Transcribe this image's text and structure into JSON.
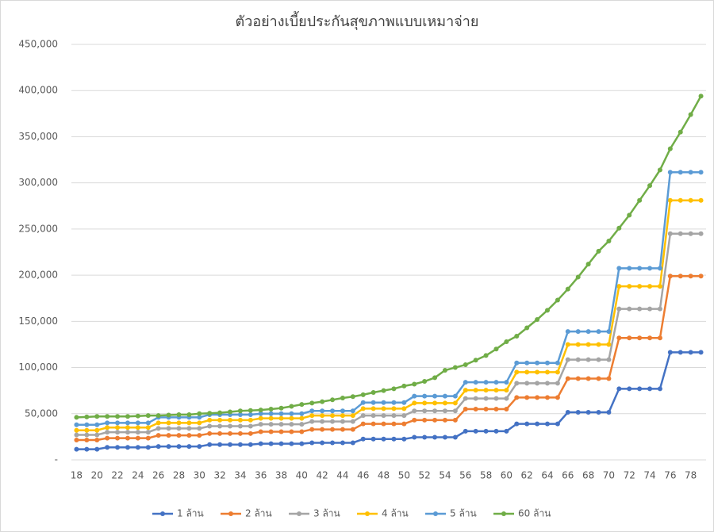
{
  "chart_data": {
    "type": "line",
    "title": "ตัวอย่างเบี้ยประกันสุขภาพแบบเหมาจ่าย",
    "x": [
      18,
      19,
      20,
      21,
      22,
      23,
      24,
      25,
      26,
      27,
      28,
      29,
      30,
      31,
      32,
      33,
      34,
      35,
      36,
      37,
      38,
      39,
      40,
      41,
      42,
      43,
      44,
      45,
      46,
      47,
      48,
      49,
      50,
      51,
      52,
      53,
      54,
      55,
      56,
      57,
      58,
      59,
      60,
      61,
      62,
      63,
      64,
      65,
      66,
      67,
      68,
      69,
      70,
      71,
      72,
      73,
      74,
      75,
      76,
      77,
      78,
      79
    ],
    "xlim": [
      17.5,
      79.5
    ],
    "xticks": [
      18,
      20,
      22,
      24,
      26,
      28,
      30,
      32,
      34,
      36,
      38,
      40,
      42,
      44,
      46,
      48,
      50,
      52,
      54,
      56,
      58,
      60,
      62,
      64,
      66,
      68,
      70,
      72,
      74,
      76,
      78
    ],
    "ylim": [
      0,
      450000
    ],
    "yticks": [
      {
        "value": 0,
        "label": "-"
      },
      {
        "value": 50000,
        "label": "50,000"
      },
      {
        "value": 100000,
        "label": "100,000"
      },
      {
        "value": 150000,
        "label": "150,000"
      },
      {
        "value": 200000,
        "label": "200,000"
      },
      {
        "value": 250000,
        "label": "250,000"
      },
      {
        "value": 300000,
        "label": "300,000"
      },
      {
        "value": 350000,
        "label": "350,000"
      },
      {
        "value": 400000,
        "label": "400,000"
      },
      {
        "value": 450000,
        "label": "450,000"
      }
    ],
    "grid": true,
    "legend": "bottom",
    "series": [
      {
        "name": "1 ล้าน",
        "color": "#4472c4",
        "values": [
          11500,
          11500,
          11500,
          13500,
          13500,
          13500,
          13500,
          13500,
          14500,
          14500,
          14500,
          14500,
          14500,
          16500,
          16500,
          16500,
          16500,
          16500,
          17500,
          17500,
          17500,
          17500,
          17500,
          18500,
          18500,
          18500,
          18500,
          18500,
          22500,
          22500,
          22500,
          22500,
          22500,
          24500,
          24500,
          24500,
          24500,
          24500,
          31000,
          31000,
          31000,
          31000,
          31000,
          39000,
          39000,
          39000,
          39000,
          39000,
          51500,
          51500,
          51500,
          51500,
          51500,
          77000,
          77000,
          77000,
          77000,
          77000,
          116500,
          116500,
          116500,
          116500
        ]
      },
      {
        "name": "2 ล้าน",
        "color": "#ed7d31",
        "values": [
          21500,
          21500,
          21500,
          23500,
          23500,
          23500,
          23500,
          23500,
          26500,
          26500,
          26500,
          26500,
          26500,
          28500,
          28500,
          28500,
          28500,
          28500,
          30500,
          30500,
          30500,
          30500,
          30500,
          33000,
          33000,
          33000,
          33000,
          33000,
          39000,
          39000,
          39000,
          39000,
          39000,
          43000,
          43000,
          43000,
          43000,
          43000,
          55000,
          55000,
          55000,
          55000,
          55000,
          67500,
          67500,
          67500,
          67500,
          67500,
          88000,
          88000,
          88000,
          88000,
          88000,
          132000,
          132000,
          132000,
          132000,
          132000,
          199000,
          199000,
          199000,
          199000
        ]
      },
      {
        "name": "3 ล้าน",
        "color": "#a5a5a5",
        "values": [
          27000,
          27000,
          27000,
          30000,
          30000,
          30000,
          30000,
          30000,
          34000,
          34000,
          34000,
          34000,
          34000,
          36500,
          36500,
          36500,
          36500,
          36500,
          38500,
          38500,
          38500,
          38500,
          38500,
          41500,
          41500,
          41500,
          41500,
          41500,
          48000,
          48000,
          48000,
          48000,
          48000,
          53000,
          53000,
          53000,
          53000,
          53000,
          66500,
          66500,
          66500,
          66500,
          66500,
          83000,
          83000,
          83000,
          83000,
          83000,
          108500,
          108500,
          108500,
          108500,
          108500,
          163500,
          163500,
          163500,
          163500,
          163500,
          245000,
          245000,
          245000,
          245000
        ]
      },
      {
        "name": "4 ล้าน",
        "color": "#ffc000",
        "values": [
          32000,
          32000,
          32000,
          35000,
          35000,
          35000,
          35000,
          35000,
          40000,
          40000,
          40000,
          40000,
          40000,
          43000,
          43000,
          43000,
          43000,
          43000,
          45000,
          45000,
          45000,
          45000,
          45000,
          48000,
          48000,
          48000,
          48000,
          48000,
          55500,
          55500,
          55500,
          55500,
          55500,
          61500,
          61500,
          61500,
          61500,
          61500,
          75500,
          75500,
          75500,
          75500,
          75500,
          95000,
          95000,
          95000,
          95000,
          95000,
          125000,
          125000,
          125000,
          125000,
          125000,
          188000,
          188000,
          188000,
          188000,
          188000,
          281000,
          281000,
          281000,
          281000
        ]
      },
      {
        "name": "5 ล้าน",
        "color": "#5b9bd5",
        "values": [
          38000,
          38000,
          38000,
          40000,
          40000,
          40000,
          40000,
          40000,
          46000,
          46000,
          46000,
          46000,
          46000,
          49000,
          49000,
          49000,
          49000,
          49000,
          50000,
          50000,
          50000,
          50000,
          50000,
          53000,
          53000,
          53000,
          53000,
          53000,
          62000,
          62000,
          62000,
          62000,
          62000,
          69000,
          69000,
          69000,
          69000,
          69000,
          84000,
          84000,
          84000,
          84000,
          84000,
          105000,
          105000,
          105000,
          105000,
          105000,
          139000,
          139000,
          139000,
          139000,
          139000,
          207500,
          207500,
          207500,
          207500,
          207500,
          311500,
          311500,
          311500,
          311500
        ]
      },
      {
        "name": "60 ล้าน",
        "color": "#70ad47",
        "values": [
          46000,
          46500,
          47000,
          47000,
          47000,
          47000,
          47500,
          48000,
          48000,
          48500,
          49000,
          49000,
          50000,
          50500,
          51000,
          52000,
          53000,
          53500,
          54000,
          55000,
          56000,
          58000,
          60000,
          61500,
          63000,
          65000,
          67000,
          68500,
          70500,
          73000,
          75000,
          77000,
          80000,
          82000,
          85000,
          89000,
          97000,
          100000,
          103000,
          108000,
          113000,
          120000,
          128000,
          134000,
          143000,
          152000,
          162000,
          173000,
          185000,
          198000,
          212000,
          226000,
          237000,
          251000,
          265000,
          281000,
          297000,
          314000,
          337000,
          355000,
          374000,
          394000
        ]
      }
    ]
  }
}
